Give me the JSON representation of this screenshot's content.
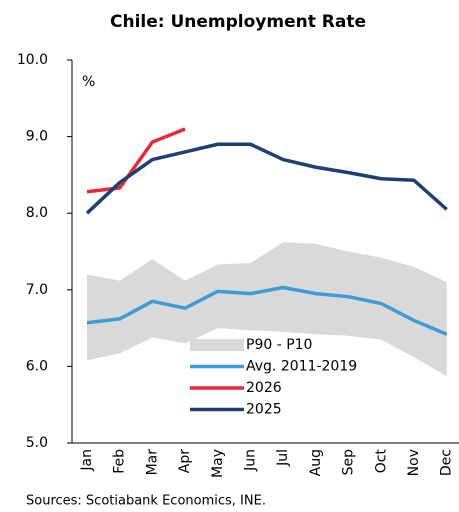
{
  "chart_data": {
    "type": "line",
    "title": "Chile: Unemployment Rate",
    "ylabel": "%",
    "categories": [
      "Jan",
      "Feb",
      "Mar",
      "Apr",
      "May",
      "Jun",
      "Jul",
      "Aug",
      "Sep",
      "Oct",
      "Nov",
      "Dec"
    ],
    "band": {
      "name": "P90 - P10",
      "color": "#d9d9d9",
      "upper": [
        7.2,
        7.12,
        7.4,
        7.12,
        7.33,
        7.35,
        7.62,
        7.6,
        7.5,
        7.42,
        7.3,
        7.1
      ],
      "lower": [
        6.08,
        6.17,
        6.38,
        6.3,
        6.5,
        6.47,
        6.45,
        6.42,
        6.4,
        6.35,
        6.12,
        5.87
      ]
    },
    "series": [
      {
        "name": "Avg. 2011-2019",
        "color": "#3d9bd6",
        "values": [
          6.57,
          6.62,
          6.85,
          6.76,
          6.98,
          6.95,
          7.03,
          6.95,
          6.91,
          6.82,
          6.6,
          6.42
        ]
      },
      {
        "name": "2026",
        "color": "#e8283a",
        "values": [
          8.28,
          8.33,
          8.93,
          9.1,
          null,
          null,
          null,
          null,
          null,
          null,
          null,
          null
        ]
      },
      {
        "name": "2025",
        "color": "#1f3f73",
        "values": [
          8.0,
          8.4,
          8.7,
          8.8,
          8.9,
          8.9,
          8.7,
          8.6,
          8.53,
          8.45,
          8.43,
          8.05
        ]
      }
    ],
    "ylim": [
      5,
      10
    ],
    "yticks": [
      {
        "value": 5,
        "label": "5.0"
      },
      {
        "value": 6,
        "label": "6.0"
      },
      {
        "value": 7,
        "label": "7.0"
      },
      {
        "value": 8,
        "label": "8.0"
      },
      {
        "value": 9,
        "label": "9.0"
      },
      {
        "value": 10,
        "label": "10.0"
      }
    ],
    "source": "Sources: Scotiabank Economics, INE."
  }
}
